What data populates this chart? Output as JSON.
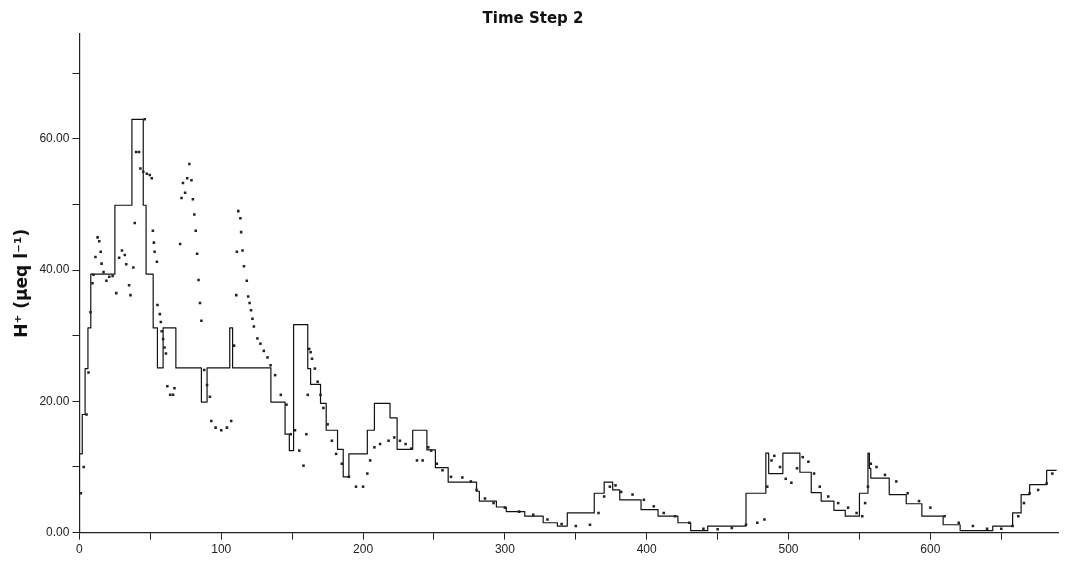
{
  "chart_data": {
    "type": "scatter",
    "title": "Time Step 2",
    "ylabel": "H⁺ (μeq l⁻¹)",
    "xlim": [
      0,
      690
    ],
    "ylim": [
      0,
      76
    ],
    "xticks": [
      0,
      {
        "value": 50,
        "label": null
      },
      100,
      {
        "value": 150,
        "label": null
      },
      200,
      {
        "value": 250,
        "label": null
      },
      300,
      {
        "value": 350,
        "label": null
      },
      400,
      {
        "value": 450,
        "label": null
      },
      500,
      {
        "value": 550,
        "label": null
      },
      600,
      {
        "value": 650,
        "label": null
      }
    ],
    "yticks": [
      {
        "value": 0,
        "label": "0.00"
      },
      {
        "value": 10,
        "label": null
      },
      {
        "value": 20,
        "label": "20.00"
      },
      {
        "value": 30,
        "label": null
      },
      {
        "value": 40,
        "label": "40.00"
      },
      {
        "value": 50,
        "label": null
      },
      {
        "value": 60,
        "label": "60.00"
      },
      {
        "value": 70,
        "label": null
      }
    ],
    "grid": false,
    "legend": false,
    "series": [
      {
        "marker": "square",
        "color": "#222222",
        "x": [
          1,
          3,
          5,
          6.4,
          7.8,
          9.2,
          9.9,
          11.3,
          12.8,
          14,
          15,
          15.6,
          17,
          19,
          21,
          23.4,
          26,
          28,
          30,
          32,
          33,
          35,
          36,
          38,
          39,
          40,
          42,
          43,
          45,
          46,
          47.5,
          49.6,
          51,
          51.8,
          52.5,
          53,
          54.6,
          55,
          56.7,
          57.4,
          58,
          59,
          60,
          61,
          62,
          64,
          66,
          67,
          71,
          72,
          73,
          74.5,
          76,
          77.5,
          79,
          80,
          81,
          82,
          83,
          84,
          85,
          86,
          88,
          90,
          92,
          93,
          96,
          100,
          104,
          107,
          109,
          110.6,
          111,
          112,
          113.5,
          114,
          115,
          116,
          118,
          119,
          120,
          121,
          122,
          123,
          125.5,
          127.6,
          130,
          132.6,
          134.8,
          138,
          142,
          146,
          149,
          152,
          155,
          158,
          160,
          161,
          162,
          163,
          164,
          166,
          168,
          170,
          172,
          175,
          178,
          181,
          185,
          190,
          195,
          200,
          203,
          205,
          208,
          212,
          218,
          222,
          226,
          230,
          234,
          238,
          242,
          246,
          248,
          252,
          256,
          262,
          270,
          276,
          280,
          286,
          292,
          300,
          310,
          320,
          330,
          340,
          350,
          360,
          366,
          370,
          374,
          378,
          382,
          390,
          398,
          405,
          412,
          420,
          430,
          440,
          450,
          460,
          470,
          478,
          483,
          485,
          488,
          490,
          494,
          498,
          502,
          506,
          510,
          514,
          518,
          522,
          528,
          535,
          542,
          548,
          552,
          554,
          556,
          558,
          562,
          568,
          576,
          584,
          592,
          600,
          610,
          620,
          630,
          640,
          650,
          658,
          662,
          666,
          670,
          676,
          682,
          686
        ],
        "values": [
          6,
          10,
          18,
          24.4,
          33.6,
          38,
          39.3,
          42,
          45,
          44.4,
          42.8,
          41,
          39.7,
          38.4,
          39,
          39.1,
          36.5,
          41.9,
          43,
          42.3,
          40.9,
          37.7,
          36.2,
          40.4,
          47.2,
          58,
          58,
          55.5,
          55,
          63,
          54.7,
          54.5,
          54,
          46,
          44.2,
          42.8,
          41.3,
          34.7,
          33.3,
          32.1,
          30.7,
          29.5,
          28.2,
          27.3,
          22.3,
          21,
          21,
          22,
          44,
          51,
          53.3,
          51.8,
          54,
          56.2,
          53.7,
          50.8,
          48.5,
          46,
          42.5,
          38.5,
          35,
          32.3,
          24.8,
          22.5,
          20.7,
          17,
          16,
          15.6,
          16,
          17,
          28.5,
          36.2,
          42.8,
          49,
          47.9,
          45.8,
          43,
          40.6,
          38.4,
          36,
          35,
          33.9,
          32.6,
          31.4,
          29.6,
          28.8,
          27.7,
          26.7,
          25.5,
          24,
          21,
          19.5,
          15,
          15.6,
          12.5,
          10.2,
          15,
          21,
          28,
          27.5,
          26.5,
          25,
          23,
          21,
          19,
          16.5,
          14,
          12,
          10.5,
          8.5,
          7,
          7,
          9,
          11,
          13,
          13.5,
          14,
          14.5,
          14,
          13.5,
          12.8,
          11,
          11,
          13,
          12.5,
          10.5,
          9.5,
          8.5,
          8.4,
          7.8,
          6.5,
          5.2,
          4.5,
          3.8,
          3.2,
          2.7,
          2,
          1.3,
          1,
          1.2,
          3,
          5.5,
          7,
          7.2,
          6.2,
          5.8,
          5,
          4,
          3,
          2.5,
          1.5,
          0.6,
          0.5,
          0.7,
          1.2,
          1.5,
          2,
          7,
          11,
          11.7,
          10,
          8.2,
          7.6,
          9.8,
          11.5,
          10.8,
          9,
          7,
          5.5,
          4.5,
          3.8,
          3,
          2.5,
          4.5,
          7,
          10.5,
          10,
          8.8,
          7.8,
          6,
          4.8,
          3.8,
          2.5,
          1.5,
          1,
          0.6,
          0.6,
          1,
          2.5,
          4.5,
          6,
          6.5,
          7.5,
          9
        ]
      },
      {
        "type": "step",
        "color": "#111111",
        "x": [
          0,
          2,
          4,
          6,
          8,
          25,
          37,
          45,
          47,
          52,
          55,
          59,
          68,
          86,
          90,
          106,
          108,
          135,
          145,
          148,
          151,
          161,
          163,
          170,
          174,
          182,
          186,
          190,
          203,
          208,
          219,
          224,
          235,
          245,
          251,
          260,
          280,
          282,
          294,
          301,
          314,
          327,
          337,
          344,
          363,
          370,
          376,
          381,
          396,
          408,
          422,
          431,
          443,
          470,
          484,
          486,
          496,
          508,
          516,
          523,
          532,
          540,
          550,
          556,
          557,
          558,
          571,
          583,
          594,
          609,
          621,
          644,
          658,
          664,
          670,
          682,
          689
        ],
        "values": [
          6,
          12,
          18,
          25,
          31.2,
          39.4,
          49.9,
          63,
          49.9,
          39.4,
          31.2,
          25.1,
          31.2,
          25.1,
          19.9,
          25.1,
          31.2,
          25.1,
          19.9,
          15,
          12.5,
          31.7,
          25,
          22.6,
          19.7,
          15.6,
          12.7,
          8.5,
          12,
          15.6,
          19.7,
          17.5,
          12.7,
          15.6,
          12.6,
          9.9,
          7.7,
          6.3,
          4.8,
          3.9,
          3.2,
          2.5,
          1.5,
          1,
          3,
          6,
          7.7,
          6.5,
          5,
          3.5,
          2.5,
          1.5,
          0.3,
          1,
          6,
          12.1,
          9,
          12.1,
          9.2,
          6.1,
          4.8,
          3.4,
          2.5,
          6,
          12.1,
          9.8,
          8.3,
          5.8,
          4.4,
          2.5,
          1.2,
          0.3,
          1,
          3,
          5.8,
          7.3,
          9.5
        ]
      }
    ]
  }
}
